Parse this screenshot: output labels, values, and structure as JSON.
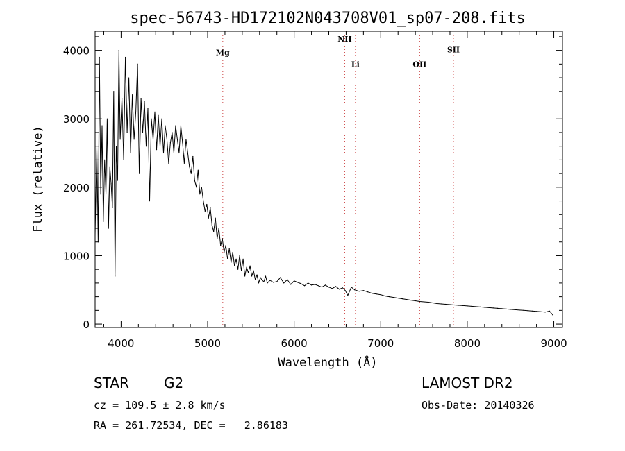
{
  "chart_data": {
    "type": "line",
    "title": "spec-56743-HD172102N043708V01_sp07-208.fits",
    "xlabel": "Wavelength (Å)",
    "ylabel": "Flux (relative)",
    "xlim": [
      3700,
      9100
    ],
    "ylim": [
      -50,
      4280
    ],
    "xticks": [
      4000,
      5000,
      6000,
      7000,
      8000,
      9000
    ],
    "yticks": [
      0,
      1000,
      2000,
      3000,
      4000
    ],
    "grid": false,
    "series": [
      {
        "x": [
          3700,
          3720,
          3735,
          3750,
          3765,
          3780,
          3795,
          3810,
          3825,
          3840,
          3855,
          3870,
          3885,
          3900,
          3915,
          3930,
          3945,
          3960,
          3975,
          3990,
          4010,
          4030,
          4050,
          4070,
          4090,
          4110,
          4130,
          4150,
          4170,
          4190,
          4210,
          4230,
          4250,
          4270,
          4290,
          4310,
          4330,
          4350,
          4370,
          4390,
          4410,
          4430,
          4450,
          4470,
          4490,
          4510,
          4530,
          4550,
          4570,
          4590,
          4610,
          4630,
          4650,
          4670,
          4690,
          4710,
          4730,
          4750,
          4770,
          4790,
          4810,
          4830,
          4850,
          4870,
          4890,
          4910,
          4930,
          4950,
          4970,
          4990,
          5010,
          5030,
          5050,
          5070,
          5090,
          5110,
          5130,
          5150,
          5170,
          5190,
          5210,
          5230,
          5250,
          5270,
          5290,
          5310,
          5330,
          5350,
          5370,
          5390,
          5410,
          5430,
          5450,
          5470,
          5490,
          5510,
          5530,
          5550,
          5570,
          5590,
          5610,
          5630,
          5650,
          5670,
          5690,
          5720,
          5760,
          5800,
          5840,
          5880,
          5920,
          5960,
          6000,
          6040,
          6080,
          6120,
          6160,
          6200,
          6240,
          6280,
          6320,
          6360,
          6400,
          6440,
          6480,
          6520,
          6560,
          6590,
          6620,
          6660,
          6700,
          6750,
          6800,
          6850,
          6900,
          6950,
          7000,
          7050,
          7100,
          7150,
          7200,
          7250,
          7300,
          7350,
          7400,
          7450,
          7500,
          7550,
          7600,
          7650,
          7700,
          7750,
          7800,
          7850,
          7900,
          7950,
          8000,
          8050,
          8100,
          8150,
          8200,
          8250,
          8300,
          8350,
          8400,
          8450,
          8500,
          8550,
          8600,
          8650,
          8700,
          8750,
          8800,
          8850,
          8900,
          8950,
          8990
        ],
        "y": [
          1300,
          2600,
          1200,
          3900,
          1900,
          2900,
          1500,
          2400,
          1900,
          3000,
          1400,
          2300,
          2050,
          1700,
          3400,
          700,
          2600,
          2100,
          4000,
          2700,
          3300,
          2400,
          3900,
          2800,
          3600,
          2500,
          3350,
          2700,
          3100,
          3800,
          2200,
          3300,
          2800,
          3250,
          2600,
          3150,
          1800,
          3000,
          2700,
          3100,
          2550,
          3050,
          2600,
          3000,
          2500,
          2900,
          2700,
          2350,
          2650,
          2800,
          2500,
          2900,
          2700,
          2500,
          2900,
          2650,
          2350,
          2700,
          2500,
          2300,
          2200,
          2450,
          2100,
          2000,
          2250,
          1900,
          2000,
          1800,
          1650,
          1750,
          1550,
          1700,
          1450,
          1350,
          1550,
          1250,
          1400,
          1150,
          1250,
          1050,
          1150,
          950,
          1100,
          900,
          1050,
          850,
          950,
          800,
          1000,
          780,
          950,
          700,
          830,
          750,
          850,
          700,
          780,
          650,
          720,
          600,
          680,
          640,
          620,
          700,
          600,
          640,
          610,
          620,
          680,
          600,
          650,
          580,
          630,
          610,
          590,
          560,
          600,
          570,
          580,
          560,
          540,
          570,
          540,
          520,
          550,
          510,
          530,
          490,
          420,
          540,
          500,
          480,
          490,
          470,
          450,
          440,
          430,
          410,
          400,
          390,
          380,
          370,
          360,
          350,
          340,
          330,
          325,
          320,
          310,
          300,
          295,
          290,
          285,
          280,
          275,
          270,
          265,
          260,
          255,
          250,
          245,
          240,
          235,
          230,
          225,
          220,
          215,
          210,
          205,
          200,
          195,
          190,
          185,
          180,
          175,
          190,
          130
        ]
      }
    ],
    "annotations": [
      {
        "label": "Mg",
        "x": 5175,
        "label_y": 3930
      },
      {
        "label": "NII",
        "x": 6584,
        "label_y": 4130
      },
      {
        "label": "Li",
        "x": 6708,
        "label_y": 3760
      },
      {
        "label": "OII",
        "x": 7450,
        "label_y": 3760
      },
      {
        "label": "SII",
        "x": 7840,
        "label_y": 3970
      }
    ]
  },
  "info": {
    "object_class": "STAR",
    "subclass": "G2",
    "survey": "LAMOST DR2",
    "redshift": "cz = 109.5 ± 2.8 km/s",
    "obs_date": "Obs-Date: 20140326",
    "coords": "RA = 261.72534, DEC =   2.86183"
  }
}
